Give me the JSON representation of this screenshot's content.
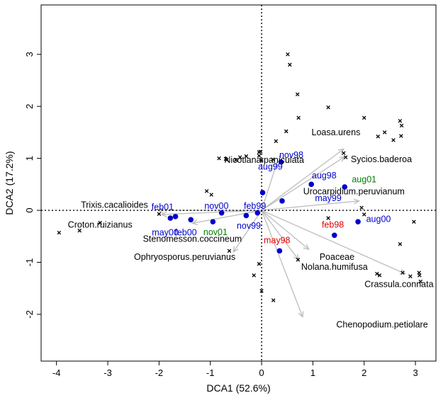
{
  "chart_data": {
    "type": "scatter",
    "title": "",
    "xlabel": "DCA1   (52.6%)",
    "ylabel": "DCA2   (17.2%)",
    "xlim": [
      -4.3,
      3.4
    ],
    "ylim": [
      -2.9,
      3.95
    ],
    "xticks": [
      -4,
      -3,
      -2,
      -1,
      0,
      1,
      2,
      3
    ],
    "yticks": [
      -2,
      -1,
      0,
      1,
      2,
      3
    ],
    "colors": {
      "axis": "#000000",
      "arrow": "#bdbdbd",
      "site_point": "#0000cc",
      "label_blue": "#0000cc",
      "label_green": "#008000",
      "label_red": "#dd0000",
      "species_text": "#000000"
    },
    "species_points": [
      [
        -3.95,
        -0.43
      ],
      [
        -3.55,
        -0.39
      ],
      [
        -3.15,
        -0.24
      ],
      [
        -2.0,
        -0.07
      ],
      [
        -1.07,
        0.37
      ],
      [
        -0.98,
        0.3
      ],
      [
        -0.83,
        1.0
      ],
      [
        -0.68,
        0.97
      ],
      [
        -0.5,
        0.97
      ],
      [
        -0.42,
        1.02
      ],
      [
        -0.3,
        1.04
      ],
      [
        -0.05,
        1.05
      ],
      [
        -0.05,
        1.12
      ],
      [
        -0.02,
        1.13
      ],
      [
        0.0,
        0.97
      ],
      [
        0.22,
        0.98
      ],
      [
        0.28,
        1.33
      ],
      [
        0.48,
        1.52
      ],
      [
        0.51,
        3.0
      ],
      [
        0.55,
        2.8
      ],
      [
        0.7,
        2.23
      ],
      [
        0.72,
        1.78
      ],
      [
        1.3,
        1.98
      ],
      [
        1.6,
        1.1
      ],
      [
        1.64,
        1.02
      ],
      [
        1.95,
        0.05
      ],
      [
        2.27,
        1.42
      ],
      [
        2.4,
        1.5
      ],
      [
        2.57,
        1.35
      ],
      [
        2.7,
        1.72
      ],
      [
        2.73,
        1.63
      ],
      [
        2.72,
        1.43
      ],
      [
        2.97,
        -0.22
      ],
      [
        -0.63,
        -0.78
      ],
      [
        -0.15,
        -1.25
      ],
      [
        -0.05,
        -1.03
      ],
      [
        0.0,
        -1.55
      ],
      [
        0.23,
        -1.73
      ],
      [
        0.71,
        -0.95
      ],
      [
        1.3,
        -0.15
      ],
      [
        2.0,
        1.78
      ],
      [
        2.0,
        -0.08
      ],
      [
        2.25,
        -1.22
      ],
      [
        2.3,
        -1.25
      ],
      [
        2.7,
        -0.65
      ],
      [
        2.75,
        -1.2
      ],
      [
        2.9,
        -1.27
      ],
      [
        3.07,
        -1.2
      ],
      [
        3.08,
        -1.25
      ],
      [
        3.1,
        -1.37
      ],
      [
        -0.7,
        0.99
      ]
    ],
    "species_arrows": [
      {
        "name": "Loasa.urens",
        "x": 1.6,
        "y": 1.18,
        "label_dx": -0.15,
        "label_dy": 0.32,
        "anchor": "middle"
      },
      {
        "name": "Sycios.baderoa",
        "x": 1.62,
        "y": 1.03,
        "label_dx": 0.12,
        "label_dy": -0.05,
        "anchor": "start"
      },
      {
        "name": "Nicotiana.paniculata",
        "x": 0.3,
        "y": 0.92,
        "label_dx": -0.25,
        "label_dy": 0.05,
        "anchor": "middle"
      },
      {
        "name": "Urocarpidium.peruvianum",
        "x": 1.9,
        "y": 0.18,
        "label_dx": -0.1,
        "label_dy": 0.18,
        "anchor": "middle"
      },
      {
        "name": "Trixis.cacalioides",
        "x": -2.02,
        "y": 0.0,
        "label_dx": -0.85,
        "label_dy": 0.1,
        "anchor": "middle"
      },
      {
        "name": "Croton.ruizianus",
        "x": -1.95,
        "y": -0.08,
        "label_dx": -1.2,
        "label_dy": -0.2,
        "anchor": "middle"
      },
      {
        "name": "Stenomesson.coccineum",
        "x": -1.35,
        "y": -0.25,
        "label_dx": 0.0,
        "label_dy": -0.3,
        "anchor": "middle"
      },
      {
        "name": "Ophryosporus.peruvianus",
        "x": -0.55,
        "y": -0.8,
        "label_dx": -0.95,
        "label_dy": -0.1,
        "anchor": "middle"
      },
      {
        "name": "Poaceae",
        "x": 0.92,
        "y": -0.75,
        "label_dx": 0.55,
        "label_dy": -0.15,
        "anchor": "middle"
      },
      {
        "name": "Nolana.humifusa",
        "x": 0.72,
        "y": -0.95,
        "label_dx": 0.7,
        "label_dy": -0.14,
        "anchor": "middle"
      },
      {
        "name": "Crassula.connata",
        "x": 2.8,
        "y": -1.22,
        "label_dx": -0.12,
        "label_dy": -0.2,
        "anchor": "middle"
      },
      {
        "name": "Chenopodium.petiolare",
        "x": 0.8,
        "y": -2.05,
        "label_dx": 1.55,
        "label_dy": -0.15,
        "anchor": "middle"
      }
    ],
    "sites": [
      {
        "name": "nov98",
        "x": 0.38,
        "y": 0.93,
        "color": "blue",
        "label_dx": 0.2,
        "label_dy": 0.13
      },
      {
        "name": "aug99",
        "x": 0.02,
        "y": 0.34,
        "color": "blue",
        "label_dx": 0.15,
        "label_dy": 0.5
      },
      {
        "name": "aug98",
        "x": 0.97,
        "y": 0.5,
        "color": "blue",
        "label_dx": 0.25,
        "label_dy": 0.17
      },
      {
        "name": "aug01",
        "x": 1.62,
        "y": 0.45,
        "color": "blue",
        "label_dx": 0.38,
        "label_dy": 0.14,
        "label_color": "green"
      },
      {
        "name": "may99",
        "x": 0.4,
        "y": 0.18,
        "color": "blue",
        "label_dx": 0.9,
        "label_dy": 0.05
      },
      {
        "name": "feb01",
        "x": -1.68,
        "y": -0.12,
        "color": "blue",
        "label_dx": -0.25,
        "label_dy": 0.18
      },
      {
        "name": "may00",
        "x": -1.78,
        "y": -0.15,
        "color": "blue",
        "label_dx": -0.1,
        "label_dy": -0.28
      },
      {
        "name": "nov00",
        "x": -0.78,
        "y": -0.05,
        "color": "blue",
        "label_dx": -0.1,
        "label_dy": 0.13
      },
      {
        "name": "feb99",
        "x": -0.08,
        "y": -0.05,
        "color": "blue",
        "label_dx": -0.05,
        "label_dy": 0.13
      },
      {
        "name": "feb00",
        "x": -1.38,
        "y": -0.18,
        "color": "blue",
        "label_dx": -0.1,
        "label_dy": -0.25
      },
      {
        "name": "nov01",
        "x": -0.95,
        "y": -0.22,
        "color": "blue",
        "label_dx": 0.05,
        "label_dy": -0.2,
        "label_color": "green"
      },
      {
        "name": "nov99",
        "x": -0.3,
        "y": -0.1,
        "color": "blue",
        "label_dx": 0.05,
        "label_dy": -0.2
      },
      {
        "name": "feb98",
        "x": 1.42,
        "y": -0.48,
        "color": "blue",
        "label_dx": -0.03,
        "label_dy": 0.2,
        "label_color": "red"
      },
      {
        "name": "aug00",
        "x": 1.88,
        "y": -0.22,
        "color": "blue",
        "label_dx": 0.4,
        "label_dy": 0.05
      },
      {
        "name": "may98",
        "x": 0.35,
        "y": -0.78,
        "color": "blue",
        "label_dx": -0.05,
        "label_dy": 0.2,
        "label_color": "red"
      }
    ]
  }
}
